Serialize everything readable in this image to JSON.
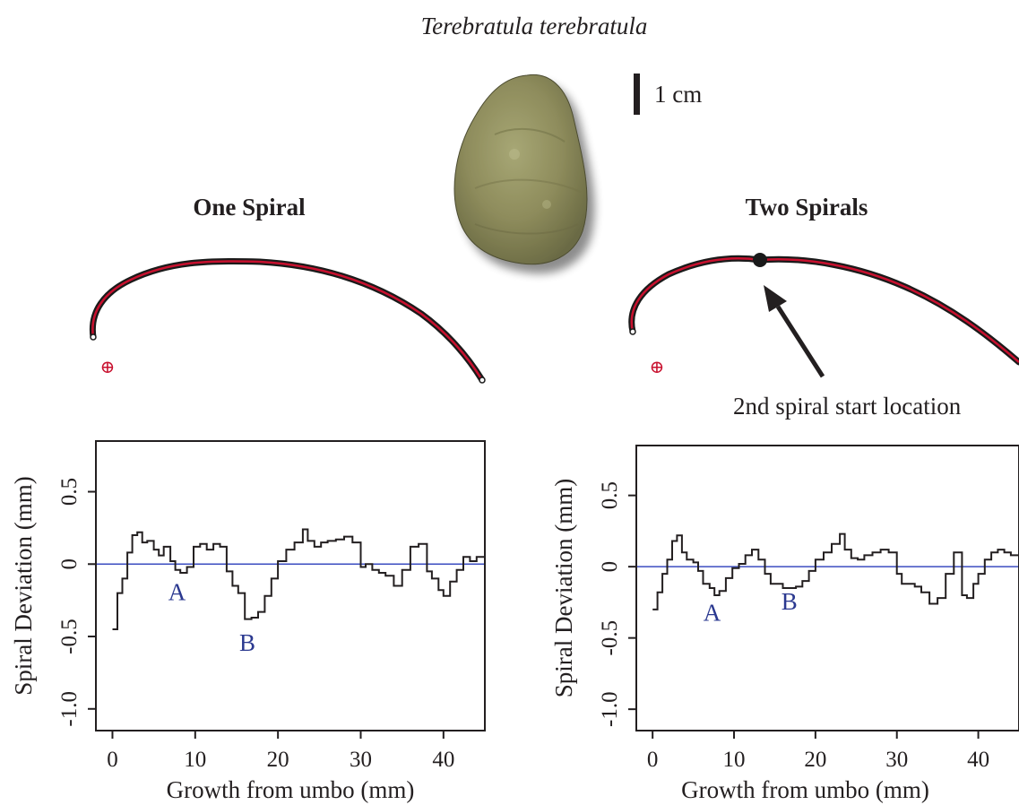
{
  "figure": {
    "title": "Terebratula terebratula",
    "scale_bar_label": "1 cm",
    "annotation": "2nd spiral start location",
    "colors": {
      "ink": "#231f20",
      "spiral_fit": "#c8102e",
      "outline": "#1a1a1a",
      "zero_line": "#3b4cc0",
      "annotation_text": "#2b3990",
      "shell": "#8f8f60"
    }
  },
  "panels": [
    {
      "heading": "One Spiral",
      "origin_marker": "⊕",
      "labels": [
        "A",
        "B"
      ]
    },
    {
      "heading": "Two Spirals",
      "origin_marker": "⊕",
      "labels": [
        "A",
        "B"
      ]
    }
  ],
  "chart_data": [
    {
      "type": "line",
      "xlabel": "Growth from umbo (mm)",
      "ylabel": "Spiral Deviation (mm)",
      "xlim": [
        -2,
        45
      ],
      "ylim": [
        -1.15,
        0.85
      ],
      "xticks": [
        0,
        10,
        20,
        30,
        40
      ],
      "yticks": [
        0.5,
        0,
        -0.5,
        -1.0
      ],
      "xtick_labels": [
        "0",
        "10",
        "20",
        "30",
        "40"
      ],
      "ytick_labels": [
        "0.5",
        "0",
        "-0.5",
        "-1.0"
      ],
      "reference_line": 0,
      "annotations": [
        {
          "text": "A",
          "x": 7.8,
          "y": -0.25
        },
        {
          "text": "B",
          "x": 16.3,
          "y": -0.6
        }
      ],
      "series": [
        {
          "x": [
            0,
            0.6,
            1.2,
            1.8,
            2.4,
            3,
            3.6,
            4.2,
            5,
            5.6,
            6.2,
            7,
            7.6,
            8.2,
            9,
            9.8,
            10.6,
            11.4,
            12.2,
            13,
            13.8,
            14.5,
            15.2,
            16,
            16.8,
            17.6,
            18.4,
            19.2,
            20,
            21,
            22,
            23,
            23.6,
            24.4,
            25.2,
            26,
            27,
            28,
            29,
            30,
            30.6,
            31.4,
            32.2,
            33,
            34,
            35,
            36,
            37,
            38,
            38.6,
            39.4,
            40,
            40.8,
            41.6,
            42.4,
            43.2,
            44,
            45
          ],
          "y": [
            -0.45,
            -0.2,
            -0.1,
            0.08,
            0.2,
            0.22,
            0.15,
            0.16,
            0.1,
            0.06,
            0.12,
            0.02,
            -0.04,
            -0.06,
            -0.02,
            0.12,
            0.14,
            0.1,
            0.14,
            0.12,
            -0.05,
            -0.15,
            -0.2,
            -0.38,
            -0.37,
            -0.33,
            -0.22,
            -0.1,
            0.02,
            0.1,
            0.15,
            0.24,
            0.16,
            0.12,
            0.15,
            0.16,
            0.17,
            0.19,
            0.15,
            -0.02,
            0.0,
            -0.04,
            -0.06,
            -0.08,
            -0.15,
            -0.04,
            0.12,
            0.14,
            -0.05,
            -0.1,
            -0.18,
            -0.22,
            -0.12,
            -0.04,
            0.05,
            0.02,
            0.05,
            0.04
          ]
        }
      ]
    },
    {
      "type": "line",
      "xlabel": "Growth from umbo (mm)",
      "ylabel": "Spiral Deviation (mm)",
      "xlim": [
        -2,
        45
      ],
      "ylim": [
        -1.15,
        0.85
      ],
      "xticks": [
        0,
        10,
        20,
        30,
        40
      ],
      "yticks": [
        0.5,
        0,
        -0.5,
        -1.0
      ],
      "xtick_labels": [
        "0",
        "10",
        "20",
        "30",
        "40"
      ],
      "ytick_labels": [
        "0.5",
        "0",
        "-0.5",
        "-1.0"
      ],
      "reference_line": 0,
      "annotations": [
        {
          "text": "A",
          "x": 7.3,
          "y": -0.38
        },
        {
          "text": "B",
          "x": 16.8,
          "y": -0.3
        }
      ],
      "series": [
        {
          "x": [
            0,
            0.6,
            1.2,
            1.8,
            2.4,
            3,
            3.6,
            4.2,
            5,
            5.6,
            6.2,
            7,
            7.6,
            8.2,
            9,
            9.8,
            10.6,
            11.4,
            12.2,
            13,
            13.8,
            14.5,
            15.2,
            16,
            16.8,
            17.6,
            18.4,
            19.2,
            20,
            21,
            22,
            23,
            23.6,
            24.4,
            25.2,
            26,
            27,
            28,
            29,
            30,
            30.6,
            31.4,
            32.2,
            33,
            34,
            35,
            36,
            37,
            38,
            38.6,
            39.4,
            40,
            40.8,
            41.6,
            42.4,
            43.2,
            44,
            45
          ],
          "y": [
            -0.3,
            -0.18,
            -0.05,
            0.05,
            0.18,
            0.22,
            0.1,
            0.05,
            0.03,
            -0.03,
            -0.12,
            -0.15,
            -0.2,
            -0.17,
            -0.08,
            -0.01,
            0.02,
            0.08,
            0.12,
            0.05,
            -0.05,
            -0.12,
            -0.12,
            -0.15,
            -0.15,
            -0.14,
            -0.1,
            -0.03,
            0.05,
            0.1,
            0.16,
            0.23,
            0.12,
            0.06,
            0.05,
            0.08,
            0.1,
            0.12,
            0.1,
            -0.05,
            -0.12,
            -0.12,
            -0.14,
            -0.18,
            -0.26,
            -0.22,
            -0.05,
            0.1,
            -0.2,
            -0.22,
            -0.12,
            -0.05,
            0.05,
            0.1,
            0.12,
            0.1,
            0.08,
            0.04
          ]
        }
      ]
    }
  ]
}
